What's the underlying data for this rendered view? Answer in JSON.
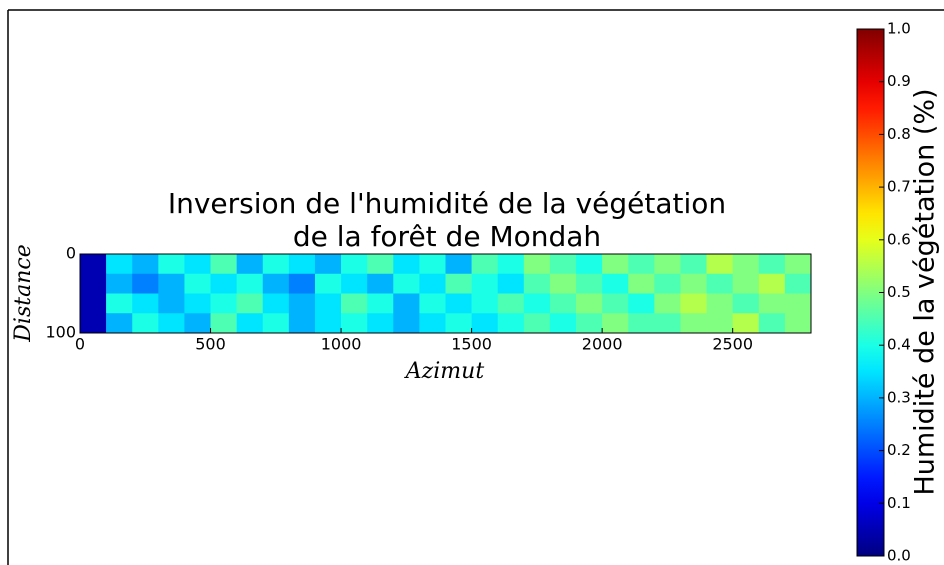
{
  "chart_data": {
    "type": "heatmap",
    "title": [
      "Inversion de l'humidité de la végétation",
      "de la forêt de Mondah"
    ],
    "xlabel": "Azimut",
    "ylabel": "Distance",
    "xlim": [
      0,
      2800
    ],
    "xticks": [
      0,
      500,
      1000,
      1500,
      2000,
      2500
    ],
    "ylim": [
      0,
      100
    ],
    "yticks": [
      0,
      100
    ],
    "y_inverted": true,
    "x_edges": [
      0,
      100,
      200,
      300,
      400,
      500,
      600,
      700,
      800,
      900,
      1000,
      1100,
      1200,
      1300,
      1400,
      1500,
      1600,
      1700,
      1800,
      1900,
      2000,
      2100,
      2200,
      2300,
      2400,
      2500,
      2600,
      2700,
      2800
    ],
    "y_edges": [
      0,
      25,
      50,
      75,
      100
    ],
    "z": [
      [
        0.05,
        0.35,
        0.3,
        0.4,
        0.35,
        0.45,
        0.3,
        0.4,
        0.35,
        0.3,
        0.4,
        0.45,
        0.35,
        0.4,
        0.3,
        0.45,
        0.4,
        0.5,
        0.45,
        0.4,
        0.5,
        0.45,
        0.5,
        0.45,
        0.55,
        0.5,
        0.45,
        0.5
      ],
      [
        0.05,
        0.3,
        0.25,
        0.3,
        0.4,
        0.35,
        0.4,
        0.3,
        0.25,
        0.4,
        0.35,
        0.3,
        0.4,
        0.35,
        0.45,
        0.4,
        0.35,
        0.45,
        0.5,
        0.45,
        0.4,
        0.5,
        0.45,
        0.5,
        0.45,
        0.5,
        0.55,
        0.45
      ],
      [
        0.05,
        0.4,
        0.35,
        0.3,
        0.35,
        0.4,
        0.45,
        0.35,
        0.3,
        0.35,
        0.45,
        0.4,
        0.3,
        0.4,
        0.35,
        0.4,
        0.45,
        0.4,
        0.45,
        0.5,
        0.45,
        0.4,
        0.5,
        0.55,
        0.5,
        0.45,
        0.5,
        0.5
      ],
      [
        0.05,
        0.3,
        0.4,
        0.35,
        0.3,
        0.45,
        0.35,
        0.4,
        0.3,
        0.35,
        0.4,
        0.35,
        0.3,
        0.35,
        0.4,
        0.35,
        0.4,
        0.45,
        0.4,
        0.45,
        0.5,
        0.45,
        0.45,
        0.5,
        0.5,
        0.55,
        0.45,
        0.5
      ]
    ],
    "colormap": "jet",
    "clim": [
      0,
      1
    ],
    "cticks": [
      {
        "value": 0,
        "label": "0.0"
      },
      0.1,
      0.2,
      0.3,
      0.4,
      0.5,
      0.6,
      0.7,
      0.8,
      0.9,
      {
        "value": 1,
        "label": "1.0"
      }
    ],
    "colorbar_label": "Humidité de la végétation (%)"
  }
}
